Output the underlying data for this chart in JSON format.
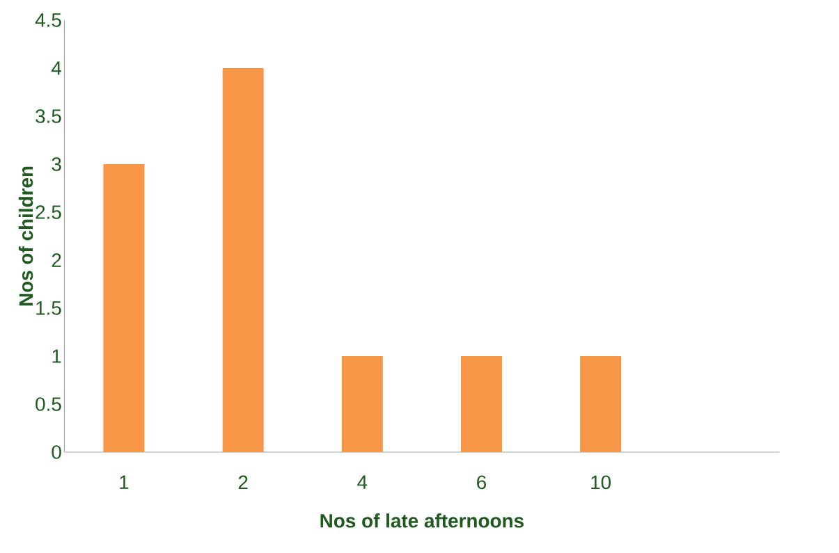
{
  "chart_data": {
    "type": "bar",
    "categories": [
      "1",
      "2",
      "4",
      "6",
      "10",
      null
    ],
    "values": [
      3,
      4,
      1,
      1,
      1,
      null
    ],
    "color": "#f79646",
    "xlabel": "Nos of late afternoons",
    "ylabel": "Nos of children",
    "ylim": [
      0,
      4.5
    ],
    "yticks": [
      0,
      0.5,
      1,
      1.5,
      2,
      2.5,
      3,
      3.5,
      4,
      4.5
    ]
  }
}
